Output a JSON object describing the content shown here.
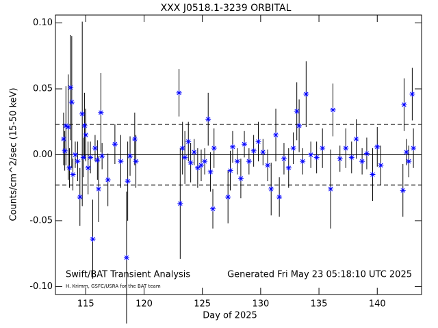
{
  "chart_data": {
    "type": "scatter",
    "title": "XXX J0518.1-3239 ORBITAL",
    "xlabel": "Day of 2025",
    "ylabel": "Counts/cm^2/sec (15-50 keV)",
    "annotations": [
      "Swift/BAT Transient Analysis",
      "Generated Fri May 23 05:18:10 UTC 2025",
      "H. Krimm, GSFC/USRA for the BAT team"
    ],
    "xlim": [
      112.4,
      143.8
    ],
    "ylim": [
      -0.106,
      0.106
    ],
    "xticks": [
      115,
      120,
      125,
      130,
      135,
      140
    ],
    "yticks": [
      {
        "value": 0.1,
        "label": "0.10"
      },
      0.05,
      {
        "value": 0,
        "label": "0.00"
      },
      -0.05,
      {
        "value": -0.1,
        "label": "-0.10"
      }
    ],
    "hlines": [
      0.023,
      -0.023
    ],
    "series": [
      {
        "color": "#0000ff",
        "x": [
          113.1,
          113.2,
          113.3,
          113.5,
          113.6,
          113.7,
          113.8,
          113.9,
          114.1,
          114.3,
          114.5,
          114.7,
          114.8,
          114.9,
          115.0,
          115.2,
          115.4,
          115.6,
          115.8,
          116.0,
          116.1,
          116.3,
          116.4,
          116.9,
          117.5,
          118.0,
          118.5,
          118.6,
          118.8,
          119.2,
          119.3,
          123.0,
          123.1,
          123.3,
          123.5,
          123.8,
          124.0,
          124.3,
          124.6,
          124.9,
          125.2,
          125.5,
          125.7,
          125.9,
          126.0,
          127.2,
          127.4,
          127.6,
          128.0,
          128.3,
          128.6,
          129.0,
          129.4,
          129.8,
          130.2,
          130.6,
          130.9,
          131.3,
          131.6,
          132.0,
          132.4,
          132.8,
          133.1,
          133.3,
          133.6,
          133.9,
          134.3,
          134.8,
          135.3,
          136.0,
          136.2,
          136.8,
          137.3,
          137.8,
          138.2,
          138.7,
          139.1,
          139.6,
          140.0,
          140.3,
          142.2,
          142.3,
          142.5,
          142.7,
          143.0,
          143.1
        ],
        "values": [
          0.012,
          0.003,
          0.022,
          0.021,
          -0.01,
          0.051,
          0.04,
          -0.015,
          0.0,
          -0.005,
          -0.032,
          0.031,
          -0.002,
          0.022,
          0.015,
          -0.01,
          -0.002,
          -0.064,
          0.005,
          -0.004,
          -0.026,
          0.032,
          -0.001,
          -0.019,
          0.008,
          -0.005,
          -0.078,
          -0.02,
          -0.001,
          0.012,
          -0.005,
          0.047,
          -0.037,
          0.005,
          -0.002,
          0.01,
          -0.006,
          0.002,
          -0.01,
          -0.008,
          -0.005,
          0.027,
          -0.013,
          -0.041,
          0.005,
          -0.032,
          -0.012,
          0.006,
          -0.005,
          -0.018,
          0.008,
          -0.005,
          0.003,
          0.01,
          0.002,
          -0.008,
          -0.026,
          0.015,
          -0.032,
          -0.003,
          -0.01,
          0.005,
          0.033,
          0.022,
          -0.005,
          0.046,
          0.0,
          -0.002,
          0.005,
          -0.026,
          0.034,
          -0.003,
          0.005,
          -0.002,
          0.012,
          -0.005,
          0.001,
          -0.015,
          0.006,
          -0.008,
          -0.027,
          0.038,
          0.002,
          -0.005,
          0.046,
          0.005
        ],
        "errors": [
          0.02,
          0.015,
          0.03,
          0.04,
          0.015,
          0.04,
          0.05,
          0.012,
          0.01,
          0.015,
          0.022,
          0.07,
          0.015,
          0.025,
          0.02,
          0.02,
          0.012,
          0.03,
          0.01,
          0.015,
          0.025,
          0.03,
          0.01,
          0.02,
          0.015,
          0.02,
          0.05,
          0.03,
          0.015,
          0.02,
          0.02,
          0.018,
          0.042,
          0.02,
          0.02,
          0.015,
          0.015,
          0.01,
          0.015,
          0.012,
          0.01,
          0.02,
          0.015,
          0.015,
          0.015,
          0.02,
          0.015,
          0.012,
          0.01,
          0.015,
          0.01,
          0.01,
          0.012,
          0.015,
          0.01,
          0.012,
          0.02,
          0.02,
          0.015,
          0.012,
          0.015,
          0.012,
          0.022,
          0.02,
          0.01,
          0.025,
          0.01,
          0.012,
          0.015,
          0.03,
          0.02,
          0.01,
          0.015,
          0.012,
          0.015,
          0.01,
          0.012,
          0.02,
          0.015,
          0.015,
          0.02,
          0.02,
          0.01,
          0.012,
          0.02,
          0.015
        ]
      }
    ]
  }
}
